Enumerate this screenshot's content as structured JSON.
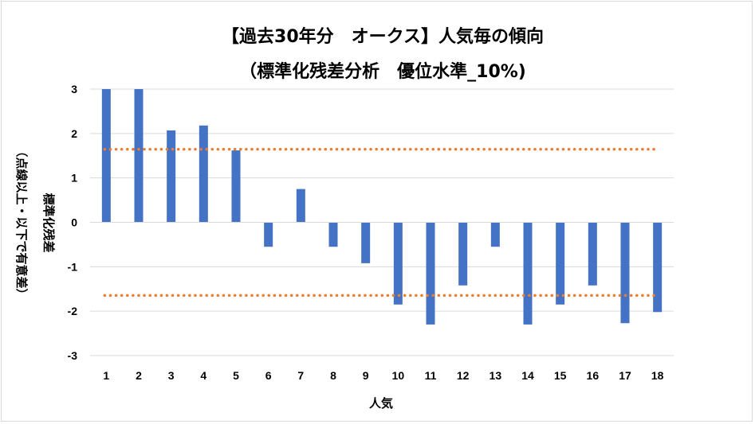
{
  "chart_data": {
    "type": "bar",
    "title": "【過去30年分　オークス】人気毎の傾向",
    "subtitle": "（標準化残差分析　優位水準_10%)",
    "xlabel": "人気",
    "ylabel_line1": "標準化残差",
    "ylabel_line2": "（点線以上・以下で有意差）",
    "categories": [
      "1",
      "2",
      "3",
      "4",
      "5",
      "6",
      "7",
      "8",
      "9",
      "10",
      "11",
      "12",
      "13",
      "14",
      "15",
      "16",
      "17",
      "18"
    ],
    "values": [
      3.0,
      3.0,
      2.07,
      2.18,
      1.62,
      -0.55,
      0.75,
      -0.55,
      -0.92,
      -1.85,
      -2.3,
      -1.42,
      -0.55,
      -2.3,
      -1.85,
      -1.42,
      -2.27,
      -2.02
    ],
    "ylim": [
      -3,
      3
    ],
    "yticks": [
      3,
      2,
      1,
      0,
      -1,
      -2,
      -3
    ],
    "threshold_upper": 1.645,
    "threshold_lower": -1.645,
    "bar_color": "#4472c4",
    "threshold_color": "#ed7d31",
    "grid": true
  }
}
